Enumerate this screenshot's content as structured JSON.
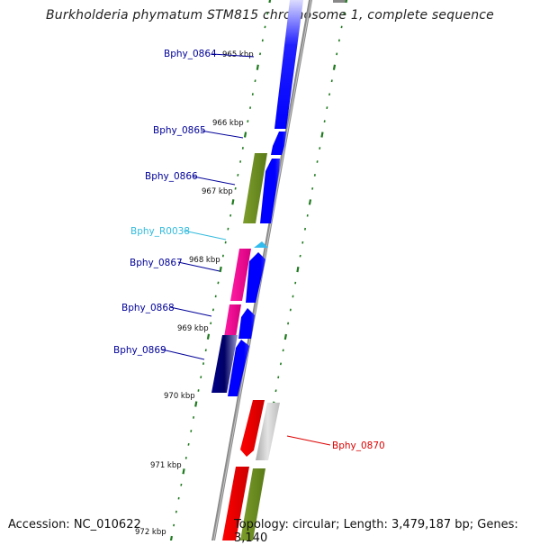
{
  "title": "Burkholderia phymatum STM815 chromosome 1, complete sequence",
  "footer": {
    "accession": "Accession: NC_010622",
    "summary": "Topology: circular; Length: 3,479,187 bp; Genes: 3,140"
  },
  "colors": {
    "backbone": "#8a8a8a",
    "tick": "#1f7a1f",
    "forward_cds": "#0000ee",
    "reverse_cds_pink": "#ee1199",
    "reverse_cds_olive": "#6b8e23",
    "reverse_cds_navy": "#000077",
    "red_cds": "#ee0000",
    "gray_cds": "#b8b8b8",
    "rna": "#33bbee",
    "label_blue": "#000099",
    "label_cyan": "#33bbdd",
    "label_red": "#dd0000"
  },
  "scale_labels": [
    "965 kbp",
    "966 kbp",
    "967 kbp",
    "968 kbp",
    "969 kbp",
    "970 kbp",
    "971 kbp",
    "972 kbp"
  ],
  "gene_labels": [
    {
      "text": "Bphy_0864",
      "color": "#000099"
    },
    {
      "text": "Bphy_0865",
      "color": "#000099"
    },
    {
      "text": "Bphy_0866",
      "color": "#000099"
    },
    {
      "text": "Bphy_R0038",
      "color": "#33bbdd"
    },
    {
      "text": "Bphy_0867",
      "color": "#000099"
    },
    {
      "text": "Bphy_0868",
      "color": "#000099"
    },
    {
      "text": "Bphy_0869",
      "color": "#000099"
    },
    {
      "text": "Bphy_0870",
      "color": "#dd0000"
    }
  ]
}
